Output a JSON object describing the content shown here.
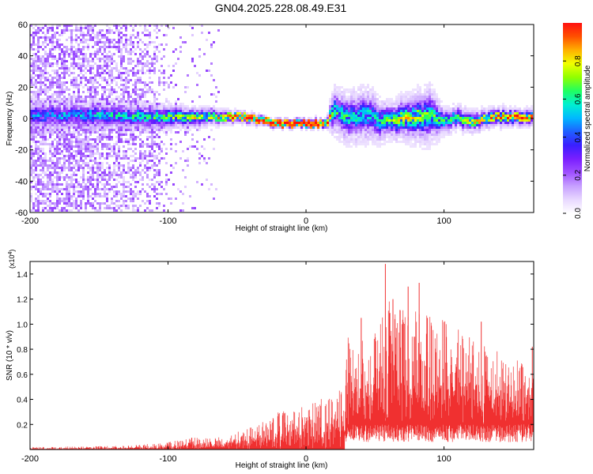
{
  "figure_title": "GN04.2025.228.08.49.E31",
  "chart_data": [
    {
      "type": "heatmap",
      "name": "spectrogram",
      "xlabel": "Height of straight line (km)",
      "ylabel": "Frequency (Hz)",
      "xlim": [
        -200,
        165
      ],
      "ylim": [
        -60,
        60
      ],
      "xticks": [
        -200,
        -100,
        0,
        100
      ],
      "yticks": [
        -60,
        -40,
        -20,
        0,
        20,
        40,
        60
      ],
      "colorbar": {
        "label": "Normalized spectral amplitude",
        "range": [
          0,
          1
        ],
        "ticks": [
          "0.0",
          "0.2",
          "0.4",
          "0.6",
          "0.8"
        ],
        "colormap": [
          "#ffffff",
          "#e8d8ff",
          "#c7a0ff",
          "#9f50ff",
          "#7a1fff",
          "#3a1fff",
          "#1f5fff",
          "#00b8ff",
          "#00f0d0",
          "#20ff60",
          "#90ff00",
          "#f0ff00",
          "#ffb000",
          "#ff5000",
          "#ff1010"
        ]
      },
      "ridge": [
        {
          "x": -200,
          "f": 2
        },
        {
          "x": -150,
          "f": 2
        },
        {
          "x": -100,
          "f": 1
        },
        {
          "x": -50,
          "f": 1
        },
        {
          "x": -20,
          "f": -3
        },
        {
          "x": 0,
          "f": -3
        },
        {
          "x": 15,
          "f": -3
        },
        {
          "x": 20,
          "f": 5
        },
        {
          "x": 30,
          "f": 0
        },
        {
          "x": 45,
          "f": 3
        },
        {
          "x": 55,
          "f": -2
        },
        {
          "x": 70,
          "f": 0
        },
        {
          "x": 90,
          "f": 2
        },
        {
          "x": 100,
          "f": -2
        },
        {
          "x": 110,
          "f": 1
        },
        {
          "x": 120,
          "f": -3
        },
        {
          "x": 130,
          "f": 0
        },
        {
          "x": 145,
          "f": 1
        },
        {
          "x": 165,
          "f": 0
        }
      ],
      "band_halfwidth": [
        {
          "x": -200,
          "w": 12
        },
        {
          "x": -100,
          "w": 10
        },
        {
          "x": -60,
          "w": 6
        },
        {
          "x": -30,
          "w": 4
        },
        {
          "x": 15,
          "w": 4
        },
        {
          "x": 20,
          "w": 18
        },
        {
          "x": 45,
          "w": 20
        },
        {
          "x": 60,
          "w": 14
        },
        {
          "x": 90,
          "w": 22
        },
        {
          "x": 100,
          "w": 10
        },
        {
          "x": 130,
          "w": 8
        },
        {
          "x": 165,
          "w": 7
        }
      ],
      "ridge_amplitude": [
        {
          "x": -200,
          "a": 0.3
        },
        {
          "x": -120,
          "a": 0.5
        },
        {
          "x": -60,
          "a": 0.75
        },
        {
          "x": -40,
          "a": 0.95
        },
        {
          "x": 15,
          "a": 0.95
        },
        {
          "x": 20,
          "a": 0.5
        },
        {
          "x": 50,
          "a": 0.45
        },
        {
          "x": 70,
          "a": 0.7
        },
        {
          "x": 100,
          "a": 0.5
        },
        {
          "x": 130,
          "a": 0.8
        },
        {
          "x": 165,
          "a": 0.85
        }
      ],
      "noise_density": [
        {
          "x": -200,
          "d": 0.85
        },
        {
          "x": -150,
          "d": 0.75
        },
        {
          "x": -110,
          "d": 0.55
        },
        {
          "x": -100,
          "d": 0.12
        },
        {
          "x": -70,
          "d": 0.08
        },
        {
          "x": -60,
          "d": 0.0
        },
        {
          "x": 165,
          "d": 0.0
        }
      ]
    },
    {
      "type": "area",
      "name": "snr",
      "xlabel": "Height of straight line (km)",
      "ylabel": "SNR (10 * v/v)",
      "y_multiplier": "(x10^4)",
      "xlim": [
        -200,
        165
      ],
      "ylim": [
        0,
        1.5
      ],
      "xticks": [
        -200,
        -100,
        0,
        100
      ],
      "yticks": [
        0.2,
        0.4,
        0.6,
        0.8,
        1.0,
        1.2,
        1.4
      ],
      "color": "#f03030",
      "floor_envelope": [
        {
          "x": -200,
          "v": 0.0
        },
        {
          "x": 25,
          "v": 0.0
        },
        {
          "x": 30,
          "v": 0.2
        },
        {
          "x": 165,
          "v": 0.2
        }
      ],
      "peak_envelope": [
        {
          "x": -200,
          "v": 0.02
        },
        {
          "x": -130,
          "v": 0.03
        },
        {
          "x": -100,
          "v": 0.06
        },
        {
          "x": -80,
          "v": 0.1
        },
        {
          "x": -60,
          "v": 0.1
        },
        {
          "x": -40,
          "v": 0.18
        },
        {
          "x": -20,
          "v": 0.3
        },
        {
          "x": 0,
          "v": 0.35
        },
        {
          "x": 20,
          "v": 0.45
        },
        {
          "x": 28,
          "v": 0.5
        },
        {
          "x": 30,
          "v": 0.9
        },
        {
          "x": 50,
          "v": 0.95
        },
        {
          "x": 60,
          "v": 1.2
        },
        {
          "x": 80,
          "v": 1.1
        },
        {
          "x": 100,
          "v": 1.05
        },
        {
          "x": 130,
          "v": 0.85
        },
        {
          "x": 150,
          "v": 0.7
        },
        {
          "x": 165,
          "v": 0.75
        }
      ],
      "spikes": [
        {
          "x": 57.5,
          "v": 1.48
        },
        {
          "x": 82,
          "v": 1.33
        },
        {
          "x": 74,
          "v": 1.3
        },
        {
          "x": 63,
          "v": 1.2
        },
        {
          "x": 88,
          "v": 1.05
        },
        {
          "x": 127,
          "v": 1.02
        },
        {
          "x": 40,
          "v": 1.05
        },
        {
          "x": 164,
          "v": 0.82
        }
      ]
    }
  ]
}
